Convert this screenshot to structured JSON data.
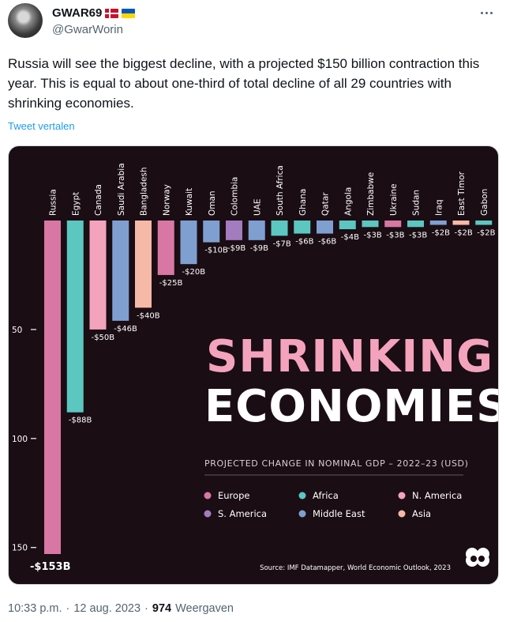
{
  "author": {
    "display_name": "GWAR69",
    "handle": "@GwarWorin",
    "flags": [
      "denmark-flag",
      "ukraine-flag"
    ]
  },
  "tweet": {
    "text": "Russia will see the biggest decline, with a projected $150 billion contraction this year. This is equal to about one-third of total decline of all 29 countries with shrinking economies.",
    "translate_label": "Tweet vertalen",
    "time": "10:33 p.m.",
    "date": "12 aug. 2023",
    "views_count": "974",
    "views_label": "Weergaven",
    "separator": "·"
  },
  "colors": {
    "link": "#1d9bf0",
    "muted": "#536471",
    "chart_bg": "#1a0d14",
    "Europe": "#d877a3",
    "Africa": "#5cc6c0",
    "N. America": "#f4a3bd",
    "S. America": "#a37bbf",
    "Middle East": "#7f9fd0",
    "Asia": "#f6b9a8"
  },
  "chart_data": {
    "type": "bar",
    "title_line1": "SHRINKING",
    "title_line2": "ECONOMIES",
    "subtitle": "PROJECTED CHANGE IN NOMINAL GDP – 2022–23 (USD)",
    "source": "Source: IMF Datamapper, World Economic Outlook, 2023",
    "ylim": [
      0,
      153
    ],
    "yticks": [
      {
        "value": 50,
        "label": "50"
      },
      {
        "value": 100,
        "label": "100"
      },
      {
        "value": 150,
        "label": "150"
      }
    ],
    "legend": [
      "Europe",
      "Africa",
      "N. America",
      "S. America",
      "Middle East",
      "Asia"
    ],
    "bars": [
      {
        "country": "Russia",
        "value": 153,
        "label": "-$153B",
        "region": "Europe"
      },
      {
        "country": "Egypt",
        "value": 88,
        "label": "-$88B",
        "region": "Africa"
      },
      {
        "country": "Canada",
        "value": 50,
        "label": "-$50B",
        "region": "N. America"
      },
      {
        "country": "Saudi Arabia",
        "value": 46,
        "label": "-$46B",
        "region": "Middle East"
      },
      {
        "country": "Bangladesh",
        "value": 40,
        "label": "-$40B",
        "region": "Asia"
      },
      {
        "country": "Norway",
        "value": 25,
        "label": "-$25B",
        "region": "Europe"
      },
      {
        "country": "Kuwait",
        "value": 20,
        "label": "-$20B",
        "region": "Middle East"
      },
      {
        "country": "Oman",
        "value": 10,
        "label": "-$10B",
        "region": "Middle East"
      },
      {
        "country": "Colombia",
        "value": 9,
        "label": "-$9B",
        "region": "S. America"
      },
      {
        "country": "UAE",
        "value": 9,
        "label": "-$9B",
        "region": "Middle East"
      },
      {
        "country": "South Africa",
        "value": 7,
        "label": "-$7B",
        "region": "Africa"
      },
      {
        "country": "Ghana",
        "value": 6,
        "label": "-$6B",
        "region": "Africa"
      },
      {
        "country": "Qatar",
        "value": 6,
        "label": "-$6B",
        "region": "Middle East"
      },
      {
        "country": "Angola",
        "value": 4,
        "label": "-$4B",
        "region": "Africa"
      },
      {
        "country": "Zimbabwe",
        "value": 3,
        "label": "-$3B",
        "region": "Africa"
      },
      {
        "country": "Ukraine",
        "value": 3,
        "label": "-$3B",
        "region": "Europe"
      },
      {
        "country": "Sudan",
        "value": 3,
        "label": "-$3B",
        "region": "Africa"
      },
      {
        "country": "Iraq",
        "value": 2,
        "label": "-$2B",
        "region": "Middle East"
      },
      {
        "country": "East Timor",
        "value": 2,
        "label": "-$2B",
        "region": "Asia"
      },
      {
        "country": "Gabon",
        "value": 2,
        "label": "-$2B",
        "region": "Africa"
      }
    ]
  }
}
